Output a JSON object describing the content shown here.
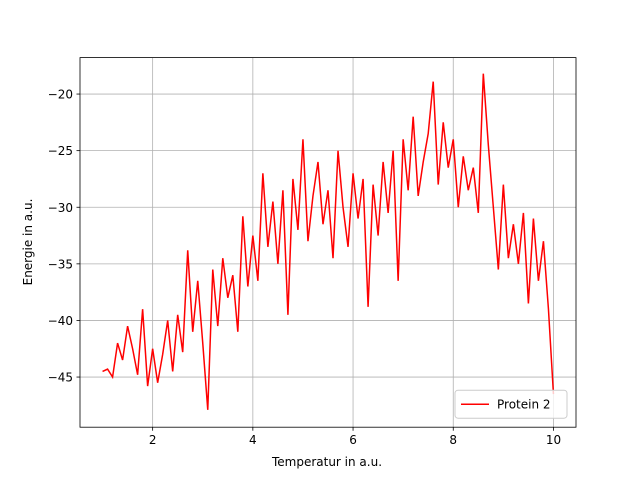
{
  "chart_data": {
    "type": "line",
    "x_label": "Temperatur in a.u.",
    "y_label": "Energie in a.u.",
    "x": [
      1.0,
      1.1,
      1.2,
      1.3,
      1.4,
      1.5,
      1.6,
      1.7,
      1.8,
      1.9,
      2.0,
      2.1,
      2.2,
      2.3,
      2.4,
      2.5,
      2.6,
      2.7,
      2.8,
      2.9,
      3.0,
      3.1,
      3.2,
      3.3,
      3.4,
      3.5,
      3.6,
      3.7,
      3.8,
      3.9,
      4.0,
      4.1,
      4.2,
      4.3,
      4.4,
      4.5,
      4.6,
      4.7,
      4.8,
      4.9,
      5.0,
      5.1,
      5.2,
      5.3,
      5.4,
      5.5,
      5.6,
      5.7,
      5.8,
      5.9,
      6.0,
      6.1,
      6.2,
      6.3,
      6.4,
      6.5,
      6.6,
      6.7,
      6.8,
      6.9,
      7.0,
      7.1,
      7.2,
      7.3,
      7.4,
      7.5,
      7.6,
      7.7,
      7.8,
      7.9,
      8.0,
      8.1,
      8.2,
      8.3,
      8.4,
      8.5,
      8.6,
      8.7,
      8.8,
      8.9,
      9.0,
      9.1,
      9.2,
      9.3,
      9.4,
      9.5,
      9.6,
      9.7,
      9.8,
      9.9,
      10.0
    ],
    "series": [
      {
        "name": "Protein 2",
        "color": "#ff0000",
        "values": [
          -44.5,
          -44.3,
          -45.0,
          -42.0,
          -43.5,
          -40.5,
          -42.5,
          -44.8,
          -39.0,
          -45.8,
          -42.5,
          -45.5,
          -43.0,
          -40.0,
          -44.5,
          -39.5,
          -42.8,
          -33.8,
          -41.0,
          -36.5,
          -42.0,
          -47.9,
          -35.5,
          -40.5,
          -34.5,
          -38.0,
          -36.0,
          -41.0,
          -30.8,
          -37.0,
          -32.5,
          -36.5,
          -27.0,
          -33.5,
          -29.5,
          -35.0,
          -28.5,
          -39.5,
          -27.5,
          -32.0,
          -24.0,
          -33.0,
          -29.0,
          -26.0,
          -31.5,
          -28.5,
          -34.5,
          -25.0,
          -30.0,
          -33.5,
          -27.0,
          -31.0,
          -27.5,
          -38.8,
          -28.0,
          -32.5,
          -26.0,
          -30.5,
          -25.0,
          -36.5,
          -24.0,
          -28.5,
          -22.0,
          -29.0,
          -26.0,
          -23.5,
          -18.9,
          -28.0,
          -22.5,
          -26.5,
          -24.0,
          -30.0,
          -25.5,
          -28.5,
          -26.5,
          -30.5,
          -18.2,
          -24.5,
          -30.0,
          -35.5,
          -28.0,
          -34.5,
          -31.5,
          -35.0,
          -30.5,
          -38.5,
          -31.0,
          -36.5,
          -33.0,
          -39.0,
          -46.5
        ]
      }
    ],
    "xlim": [
      0.55,
      10.45
    ],
    "ylim": [
      -49.43,
      -16.78
    ],
    "xticks": [
      2,
      4,
      6,
      8,
      10
    ],
    "yticks": [
      -45,
      -40,
      -35,
      -30,
      -25,
      -20
    ],
    "grid": true,
    "legend": "lower right"
  }
}
